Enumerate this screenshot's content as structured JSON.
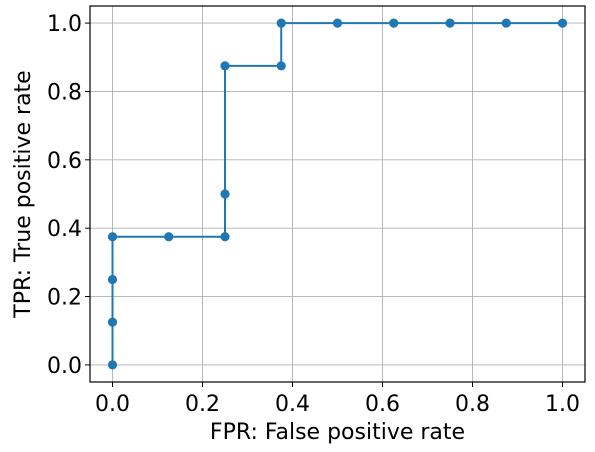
{
  "chart_data": {
    "type": "line",
    "title": "",
    "xlabel": "FPR: False positive rate",
    "ylabel": "TPR: True positive rate",
    "xlim": [
      -0.05,
      1.05
    ],
    "ylim": [
      -0.05,
      1.05
    ],
    "xticks": [
      0.0,
      0.2,
      0.4,
      0.6,
      0.8,
      1.0
    ],
    "yticks": [
      0.0,
      0.2,
      0.4,
      0.6,
      0.8,
      1.0
    ],
    "xtick_labels": [
      "0.0",
      "0.2",
      "0.4",
      "0.6",
      "0.8",
      "1.0"
    ],
    "ytick_labels": [
      "0.0",
      "0.2",
      "0.4",
      "0.6",
      "0.8",
      "1.0"
    ],
    "grid": true,
    "series": [
      {
        "color": "#1f77b4",
        "marker": "circle",
        "x": [
          0.0,
          0.0,
          0.0,
          0.0,
          0.125,
          0.25,
          0.25,
          0.25,
          0.375,
          0.375,
          0.5,
          0.625,
          0.75,
          0.875,
          1.0
        ],
        "y": [
          0.0,
          0.125,
          0.25,
          0.375,
          0.375,
          0.375,
          0.5,
          0.875,
          0.875,
          1.0,
          1.0,
          1.0,
          1.0,
          1.0,
          1.0
        ]
      }
    ]
  }
}
